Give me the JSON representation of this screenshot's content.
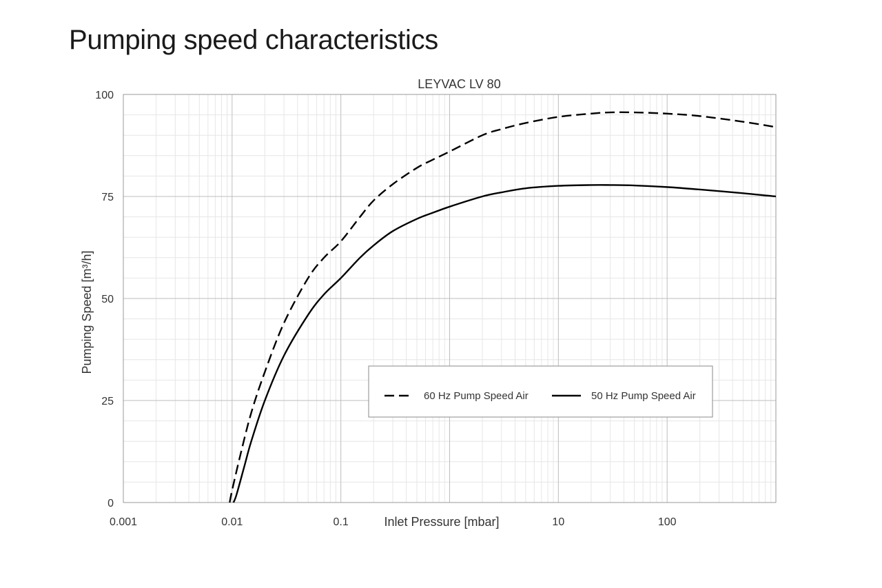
{
  "page": {
    "title": "Pumping speed characteristics"
  },
  "chart_data": {
    "type": "line",
    "title": "LEYVAC  LV 80",
    "xlabel": "Inlet Pressure  [mbar]",
    "ylabel": "Pumping Speed [m³/h]",
    "x_scale": "log",
    "xlim": [
      0.001,
      1000
    ],
    "ylim": [
      0,
      100
    ],
    "x_ticks": [
      0.001,
      0.01,
      0.1,
      10,
      100
    ],
    "x_tick_labels": [
      "0.001",
      "0.01",
      "0.1",
      "10",
      "100"
    ],
    "y_ticks": [
      0,
      25,
      50,
      75,
      100
    ],
    "y_tick_labels": [
      "0",
      "25",
      "50",
      "75",
      "100"
    ],
    "grid": true,
    "legend": "center-right",
    "series": [
      {
        "name": "60 Hz Pump Speed Air",
        "style": "dashed",
        "color": "#000000",
        "x": [
          0.0095,
          0.01,
          0.012,
          0.015,
          0.02,
          0.03,
          0.05,
          0.07,
          0.1,
          0.15,
          0.2,
          0.3,
          0.5,
          0.7,
          1,
          2,
          3,
          5,
          10,
          20,
          30,
          50,
          100,
          200,
          500,
          1000
        ],
        "y": [
          0,
          3,
          12,
          22,
          32,
          44,
          55,
          60,
          64,
          70,
          74,
          78,
          82,
          84,
          86,
          90,
          91.5,
          93,
          94.5,
          95.3,
          95.6,
          95.6,
          95.3,
          94.7,
          93.3,
          92
        ]
      },
      {
        "name": "50 Hz Pump Speed Air",
        "style": "solid",
        "color": "#000000",
        "x": [
          0.0103,
          0.011,
          0.013,
          0.015,
          0.02,
          0.03,
          0.05,
          0.07,
          0.1,
          0.15,
          0.2,
          0.3,
          0.5,
          0.7,
          1,
          2,
          3,
          5,
          10,
          20,
          30,
          50,
          100,
          200,
          500,
          1000
        ],
        "y": [
          0,
          2,
          9,
          15,
          25,
          36,
          46,
          51,
          55,
          60,
          63,
          66.5,
          69.5,
          71,
          72.5,
          75,
          76,
          77,
          77.6,
          77.8,
          77.8,
          77.7,
          77.3,
          76.7,
          75.8,
          75
        ]
      }
    ]
  }
}
